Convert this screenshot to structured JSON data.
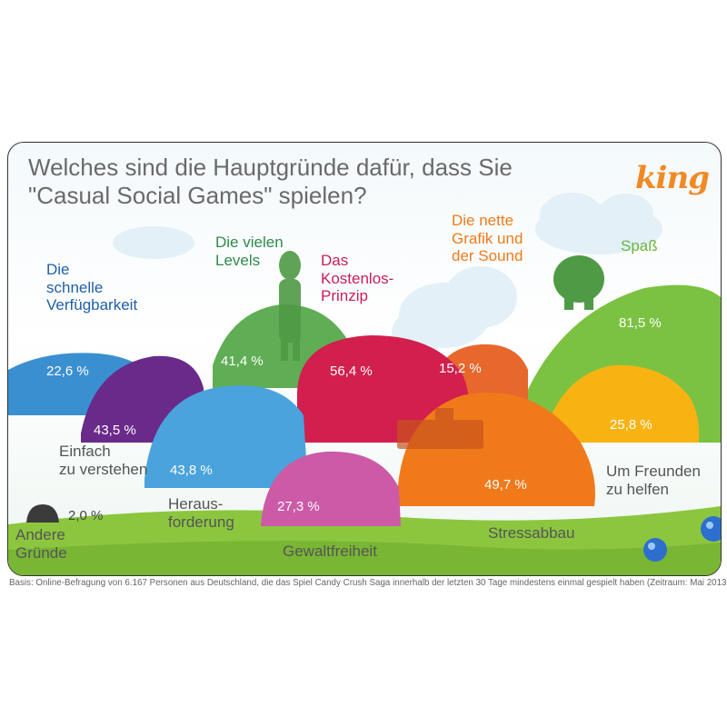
{
  "logo_text": "king",
  "footnote": "Basis: Online-Befragung von 6.167 Personen aus Deutschland, die das Spiel Candy Crush Saga innerhalb der letzten 30 Tage mindestens einmal gespielt haben (Zeitraum: Mai 2013).",
  "chart_data": {
    "type": "bar",
    "title": "Welches sind die Hauptgründe dafür, dass Sie\n\"Casual Social Games\" spielen?",
    "unit": "%",
    "categories": [
      "Spaß",
      "Die nette\nGrafik und\nder Sound",
      "Das\nKostenlos-\nPrinzip",
      "Die vielen\nLevels",
      "Die\nschnelle\nVerfügbarkeit",
      "Einfach\nzu verstehen",
      "Heraus-\nforderung",
      "Gewaltfreiheit",
      "Stressabbau",
      "Um Freunden\nzu helfen",
      "Andere\nGründe"
    ],
    "values": [
      81.5,
      15.2,
      56.4,
      41.4,
      22.6,
      43.5,
      43.8,
      27.3,
      49.7,
      25.8,
      2.0
    ],
    "value_labels": [
      "81,5 %",
      "15,2 %",
      "56,4 %",
      "41,4 %",
      "22,6 %",
      "43,5 %",
      "43,8 %",
      "27,3 %",
      "49,7 %",
      "25,8 %",
      "2,0 %"
    ],
    "colors": [
      "#7cc242",
      "#e8672c",
      "#d21f4e",
      "#5fae55",
      "#3a8fd1",
      "#6a2a8a",
      "#4aa3dc",
      "#cc5aa6",
      "#f07a1a",
      "#f8b313",
      "#3b3b3b"
    ],
    "label_colors": [
      "#6db33f",
      "#f07a1a",
      "#c81e5b",
      "#2f8a4a",
      "#1f5fa8",
      "#555555",
      "#555555",
      "#555555",
      "#555555",
      "#555555",
      "#555555"
    ]
  }
}
